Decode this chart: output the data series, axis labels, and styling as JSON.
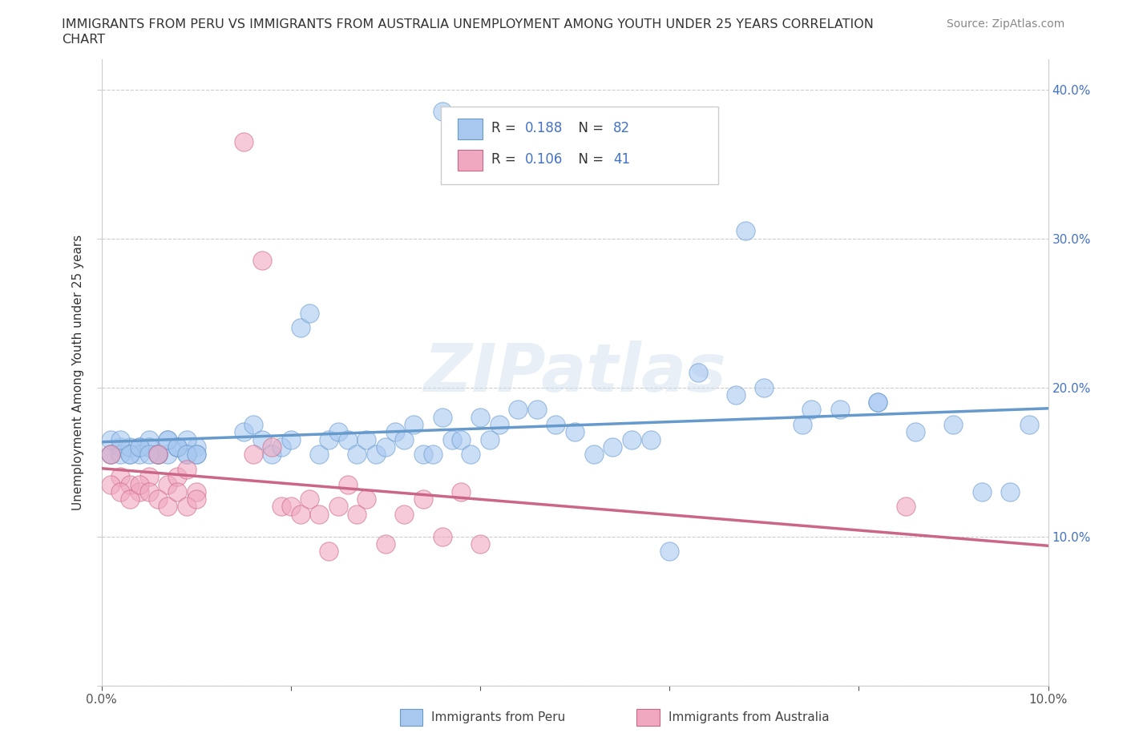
{
  "title_line1": "IMMIGRANTS FROM PERU VS IMMIGRANTS FROM AUSTRALIA UNEMPLOYMENT AMONG YOUTH UNDER 25 YEARS CORRELATION",
  "title_line2": "CHART",
  "source": "Source: ZipAtlas.com",
  "ylabel": "Unemployment Among Youth under 25 years",
  "color_peru": "#a8c8f0",
  "color_australia": "#f0a8c0",
  "color_blue_text": "#4472c4",
  "color_peru_line": "#6699cc",
  "color_aus_line": "#cc6688",
  "watermark": "ZIPatlas",
  "R_peru": 0.188,
  "N_peru": 82,
  "R_australia": 0.106,
  "N_australia": 41,
  "xlim": [
    0.0,
    0.1
  ],
  "ylim": [
    0.0,
    0.42
  ],
  "peru_x": [
    0.001,
    0.002,
    0.003,
    0.004,
    0.005,
    0.006,
    0.007,
    0.008,
    0.009,
    0.01,
    0.001,
    0.002,
    0.003,
    0.004,
    0.005,
    0.006,
    0.007,
    0.008,
    0.009,
    0.01,
    0.001,
    0.002,
    0.003,
    0.004,
    0.005,
    0.006,
    0.007,
    0.008,
    0.009,
    0.01,
    0.015,
    0.016,
    0.017,
    0.018,
    0.019,
    0.02,
    0.021,
    0.022,
    0.023,
    0.024,
    0.025,
    0.026,
    0.027,
    0.028,
    0.029,
    0.03,
    0.031,
    0.032,
    0.033,
    0.034,
    0.035,
    0.036,
    0.037,
    0.038,
    0.039,
    0.04,
    0.041,
    0.042,
    0.044,
    0.046,
    0.048,
    0.05,
    0.052,
    0.054,
    0.056,
    0.058,
    0.06,
    0.063,
    0.067,
    0.07,
    0.074,
    0.078,
    0.082,
    0.086,
    0.09,
    0.093,
    0.096,
    0.098,
    0.036,
    0.068,
    0.075,
    0.082
  ],
  "peru_y": [
    0.155,
    0.16,
    0.155,
    0.16,
    0.165,
    0.155,
    0.155,
    0.16,
    0.155,
    0.16,
    0.165,
    0.155,
    0.16,
    0.155,
    0.16,
    0.155,
    0.165,
    0.16,
    0.165,
    0.155,
    0.155,
    0.165,
    0.155,
    0.16,
    0.155,
    0.155,
    0.165,
    0.16,
    0.155,
    0.155,
    0.17,
    0.175,
    0.165,
    0.155,
    0.16,
    0.165,
    0.24,
    0.25,
    0.155,
    0.165,
    0.17,
    0.165,
    0.155,
    0.165,
    0.155,
    0.16,
    0.17,
    0.165,
    0.175,
    0.155,
    0.155,
    0.18,
    0.165,
    0.165,
    0.155,
    0.18,
    0.165,
    0.175,
    0.185,
    0.185,
    0.175,
    0.17,
    0.155,
    0.16,
    0.165,
    0.165,
    0.09,
    0.21,
    0.195,
    0.2,
    0.175,
    0.185,
    0.19,
    0.17,
    0.175,
    0.13,
    0.13,
    0.175,
    0.385,
    0.305,
    0.185,
    0.19
  ],
  "australia_x": [
    0.001,
    0.002,
    0.003,
    0.004,
    0.005,
    0.006,
    0.007,
    0.008,
    0.009,
    0.01,
    0.001,
    0.002,
    0.003,
    0.004,
    0.005,
    0.006,
    0.007,
    0.008,
    0.009,
    0.01,
    0.015,
    0.016,
    0.017,
    0.018,
    0.019,
    0.02,
    0.021,
    0.022,
    0.023,
    0.024,
    0.025,
    0.026,
    0.027,
    0.028,
    0.03,
    0.032,
    0.034,
    0.036,
    0.038,
    0.04,
    0.085
  ],
  "australia_y": [
    0.155,
    0.14,
    0.135,
    0.13,
    0.14,
    0.155,
    0.135,
    0.14,
    0.145,
    0.13,
    0.135,
    0.13,
    0.125,
    0.135,
    0.13,
    0.125,
    0.12,
    0.13,
    0.12,
    0.125,
    0.365,
    0.155,
    0.285,
    0.16,
    0.12,
    0.12,
    0.115,
    0.125,
    0.115,
    0.09,
    0.12,
    0.135,
    0.115,
    0.125,
    0.095,
    0.115,
    0.125,
    0.1,
    0.13,
    0.095,
    0.12
  ]
}
